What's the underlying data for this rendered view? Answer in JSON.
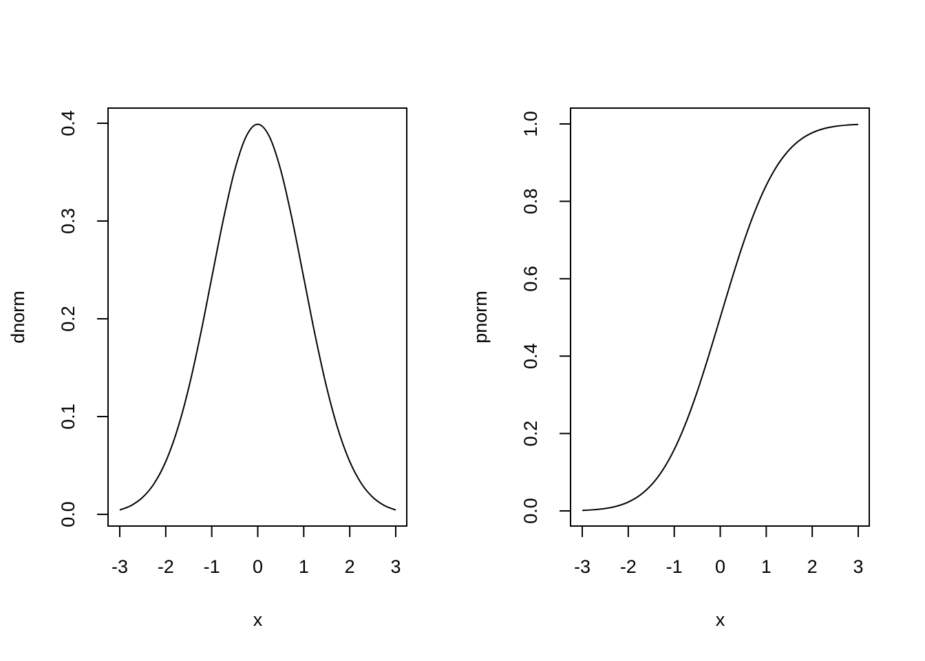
{
  "chart_data": [
    {
      "type": "line",
      "title": "",
      "xlabel": "x",
      "ylabel": "dnorm",
      "xlim": [
        -3,
        3
      ],
      "ylim": [
        0,
        0.4
      ],
      "x_ticks": [
        "-3",
        "-2",
        "-1",
        "0",
        "1",
        "2",
        "3"
      ],
      "y_ticks": [
        "0.0",
        "0.1",
        "0.2",
        "0.3",
        "0.4"
      ],
      "grid": false,
      "series": [
        {
          "x": [
            -3.0,
            -2.75,
            -2.5,
            -2.25,
            -2.0,
            -1.75,
            -1.5,
            -1.25,
            -1.0,
            -0.75,
            -0.5,
            -0.25,
            0.0,
            0.25,
            0.5,
            0.75,
            1.0,
            1.25,
            1.5,
            1.75,
            2.0,
            2.25,
            2.5,
            2.75,
            3.0
          ],
          "y": [
            0.0044,
            0.0091,
            0.0175,
            0.0317,
            0.054,
            0.0863,
            0.1295,
            0.1826,
            0.242,
            0.3011,
            0.3521,
            0.3867,
            0.3989,
            0.3867,
            0.3521,
            0.3011,
            0.242,
            0.1826,
            0.1295,
            0.0863,
            0.054,
            0.0317,
            0.0175,
            0.0091,
            0.0044
          ]
        }
      ]
    },
    {
      "type": "line",
      "title": "",
      "xlabel": "x",
      "ylabel": "pnorm",
      "xlim": [
        -3,
        3
      ],
      "ylim": [
        0,
        1
      ],
      "x_ticks": [
        "-3",
        "-2",
        "-1",
        "0",
        "1",
        "2",
        "3"
      ],
      "y_ticks": [
        "0.0",
        "0.2",
        "0.4",
        "0.6",
        "0.8",
        "1.0"
      ],
      "grid": false,
      "series": [
        {
          "x": [
            -3.0,
            -2.75,
            -2.5,
            -2.25,
            -2.0,
            -1.75,
            -1.5,
            -1.25,
            -1.0,
            -0.75,
            -0.5,
            -0.25,
            0.0,
            0.25,
            0.5,
            0.75,
            1.0,
            1.25,
            1.5,
            1.75,
            2.0,
            2.25,
            2.5,
            2.75,
            3.0
          ],
          "y": [
            0.0013,
            0.003,
            0.0062,
            0.0122,
            0.0228,
            0.0401,
            0.0668,
            0.1056,
            0.1587,
            0.2266,
            0.3085,
            0.4013,
            0.5,
            0.5987,
            0.6915,
            0.7734,
            0.8413,
            0.8944,
            0.9332,
            0.9599,
            0.9772,
            0.9878,
            0.9938,
            0.997,
            0.9987
          ]
        }
      ]
    }
  ]
}
